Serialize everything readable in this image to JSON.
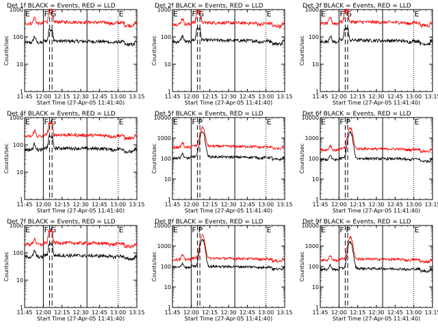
{
  "chart_data": [
    {
      "type": "line",
      "title": "Det 1f BLACK = Events, RED = LLD",
      "xlabel": "Start Time (27-Apr-05 11:41:40)",
      "ylabel": "Counts/sec",
      "yscale": "log",
      "ylim": [
        1,
        1000
      ],
      "y_ticks": [
        "1",
        "10",
        "100",
        "1000"
      ],
      "xlim": [
        "11:45",
        "13:15"
      ],
      "x_ticks": [
        "11:45",
        "12:00",
        "12:15",
        "12:30",
        "12:45",
        "13:00",
        "13:15"
      ],
      "markers": [
        {
          "label": "E",
          "time": "11:45",
          "style": "dotted"
        },
        {
          "label": "F",
          "time": "12:00",
          "style": "solid"
        },
        {
          "label": "G",
          "time": "12:05",
          "style": "dashed"
        },
        {
          "label": "",
          "time": "12:07",
          "style": "dashed"
        },
        {
          "label": "",
          "time": "12:35",
          "style": "solid"
        },
        {
          "label": "E",
          "time": "13:00",
          "style": "dotted"
        }
      ],
      "series": [
        {
          "name": "Events",
          "color": "#000000",
          "profile": "front",
          "base": 70,
          "peak": 0
        },
        {
          "name": "LLD",
          "color": "#ff0000",
          "profile": "front",
          "base": 350,
          "peak": 0
        }
      ]
    },
    {
      "type": "line",
      "title": "Det 2f BLACK = Events, RED = LLD",
      "xlabel": "Start Time (27-Apr-05 11:41:40)",
      "ylabel": "Counts/sec",
      "yscale": "log",
      "ylim": [
        1,
        1000
      ],
      "y_ticks": [
        "1",
        "10",
        "100",
        "1000"
      ],
      "xlim": [
        "11:45",
        "13:15"
      ],
      "x_ticks": [
        "11:45",
        "12:00",
        "12:15",
        "12:30",
        "12:45",
        "13:00",
        "13:15"
      ],
      "markers": [
        {
          "label": "E",
          "time": "11:45",
          "style": "dotted"
        },
        {
          "label": "F",
          "time": "12:00",
          "style": "solid"
        },
        {
          "label": "G",
          "time": "12:05",
          "style": "dashed"
        },
        {
          "label": "",
          "time": "12:07",
          "style": "dashed"
        },
        {
          "label": "",
          "time": "12:35",
          "style": "solid"
        },
        {
          "label": "E",
          "time": "13:00",
          "style": "dotted"
        }
      ],
      "series": [
        {
          "name": "Events",
          "color": "#000000",
          "profile": "front",
          "base": 75,
          "peak": 0
        },
        {
          "name": "LLD",
          "color": "#ff0000",
          "profile": "front",
          "base": 330,
          "peak": 0
        }
      ]
    },
    {
      "type": "line",
      "title": "Det 3f BLACK = Events, RED = LLD",
      "xlabel": "Start Time (27-Apr-05 11:41:40)",
      "ylabel": "Counts/sec",
      "yscale": "log",
      "ylim": [
        1,
        1000
      ],
      "y_ticks": [
        "1",
        "10",
        "100",
        "1000"
      ],
      "xlim": [
        "11:45",
        "13:15"
      ],
      "x_ticks": [
        "11:45",
        "12:00",
        "12:15",
        "12:30",
        "12:45",
        "13:00",
        "13:15"
      ],
      "markers": [
        {
          "label": "E",
          "time": "11:45",
          "style": "dotted"
        },
        {
          "label": "F",
          "time": "12:00",
          "style": "solid"
        },
        {
          "label": "G",
          "time": "12:05",
          "style": "dashed"
        },
        {
          "label": "",
          "time": "12:07",
          "style": "dashed"
        },
        {
          "label": "",
          "time": "12:35",
          "style": "solid"
        },
        {
          "label": "E",
          "time": "13:00",
          "style": "dotted"
        }
      ],
      "series": [
        {
          "name": "Events",
          "color": "#000000",
          "profile": "front",
          "base": 75,
          "peak": 0
        },
        {
          "name": "LLD",
          "color": "#ff0000",
          "profile": "front",
          "base": 350,
          "peak": 0
        }
      ]
    },
    {
      "type": "line",
      "title": "Det 4f BLACK = Events, RED = LLD",
      "xlabel": "Start Time (27-Apr-05 11:41:40)",
      "ylabel": "Counts/sec",
      "yscale": "log",
      "ylim": [
        1,
        1000
      ],
      "y_ticks": [
        "1",
        "10",
        "100",
        "1000"
      ],
      "xlim": [
        "11:45",
        "13:15"
      ],
      "x_ticks": [
        "11:45",
        "12:00",
        "12:15",
        "12:30",
        "12:45",
        "13:00",
        "13:15"
      ],
      "markers": [
        {
          "label": "E",
          "time": "11:45",
          "style": "dotted"
        },
        {
          "label": "F",
          "time": "12:00",
          "style": "solid"
        },
        {
          "label": "G",
          "time": "12:05",
          "style": "dashed"
        },
        {
          "label": "",
          "time": "12:07",
          "style": "dashed"
        },
        {
          "label": "",
          "time": "12:35",
          "style": "solid"
        },
        {
          "label": "E",
          "time": "13:00",
          "style": "dotted"
        }
      ],
      "series": [
        {
          "name": "Events",
          "color": "#000000",
          "profile": "front",
          "base": 75,
          "peak": 0
        },
        {
          "name": "LLD",
          "color": "#ff0000",
          "profile": "front",
          "base": 230,
          "peak": 0
        }
      ]
    },
    {
      "type": "line",
      "title": "Det 5f BLACK = Events, RED = LLD",
      "xlabel": "Start Time (27-Apr-05 11:41:40)",
      "ylabel": "Counts/sec",
      "yscale": "log",
      "ylim": [
        1,
        10000
      ],
      "y_ticks": [
        "1",
        "10",
        "100",
        "1000",
        "10000"
      ],
      "xlim": [
        "11:45",
        "13:15"
      ],
      "x_ticks": [
        "11:45",
        "12:00",
        "12:15",
        "12:30",
        "12:45",
        "13:00",
        "13:15"
      ],
      "markers": [
        {
          "label": "E",
          "time": "11:45",
          "style": "dotted"
        },
        {
          "label": "F",
          "time": "12:00",
          "style": "solid"
        },
        {
          "label": "P",
          "time": "12:05",
          "style": "dashed"
        },
        {
          "label": "",
          "time": "12:07",
          "style": "dashed"
        },
        {
          "label": "",
          "time": "12:35",
          "style": "solid"
        },
        {
          "label": "E",
          "time": "13:00",
          "style": "dotted"
        }
      ],
      "series": [
        {
          "name": "Events",
          "color": "#000000",
          "profile": "rear",
          "base": 120,
          "peak": 2000
        },
        {
          "name": "LLD",
          "color": "#ff0000",
          "profile": "rear",
          "base": 400,
          "peak": 3000
        }
      ]
    },
    {
      "type": "line",
      "title": "Det 6f BLACK = Events, RED = LLD",
      "xlabel": "Start Time (27-Apr-05 11:41:40)",
      "ylabel": "Counts/sec",
      "yscale": "log",
      "ylim": [
        1,
        10000
      ],
      "y_ticks": [
        "1",
        "10",
        "100",
        "1000",
        "10000"
      ],
      "xlim": [
        "11:45",
        "13:15"
      ],
      "x_ticks": [
        "11:45",
        "12:00",
        "12:15",
        "12:30",
        "12:45",
        "13:00",
        "13:15"
      ],
      "markers": [
        {
          "label": "E",
          "time": "11:45",
          "style": "dotted"
        },
        {
          "label": "F",
          "time": "12:00",
          "style": "solid"
        },
        {
          "label": "P",
          "time": "12:05",
          "style": "dashed"
        },
        {
          "label": "",
          "time": "12:07",
          "style": "dashed"
        },
        {
          "label": "",
          "time": "12:35",
          "style": "solid"
        },
        {
          "label": "E",
          "time": "13:00",
          "style": "dotted"
        }
      ],
      "series": [
        {
          "name": "Events",
          "color": "#000000",
          "profile": "rear",
          "base": 100,
          "peak": 1800
        },
        {
          "name": "LLD",
          "color": "#ff0000",
          "profile": "rear",
          "base": 300,
          "peak": 2800
        }
      ]
    },
    {
      "type": "line",
      "title": "Det 7f BLACK = Events, RED = LLD",
      "xlabel": "Start Time (27-Apr-05 11:41:40)",
      "ylabel": "Counts/sec",
      "yscale": "log",
      "ylim": [
        1,
        1000
      ],
      "y_ticks": [
        "1",
        "10",
        "100",
        "1000"
      ],
      "xlim": [
        "11:45",
        "13:15"
      ],
      "x_ticks": [
        "11:45",
        "12:00",
        "12:15",
        "12:30",
        "12:45",
        "13:00",
        "13:15"
      ],
      "markers": [
        {
          "label": "E",
          "time": "11:45",
          "style": "dotted"
        },
        {
          "label": "F",
          "time": "12:00",
          "style": "solid"
        },
        {
          "label": "G",
          "time": "12:05",
          "style": "dashed"
        },
        {
          "label": "",
          "time": "12:07",
          "style": "dashed"
        },
        {
          "label": "",
          "time": "12:35",
          "style": "solid"
        },
        {
          "label": "E",
          "time": "13:00",
          "style": "dotted"
        }
      ],
      "series": [
        {
          "name": "Events",
          "color": "#000000",
          "profile": "front",
          "base": 80,
          "peak": 0
        },
        {
          "name": "LLD",
          "color": "#ff0000",
          "profile": "front",
          "base": 230,
          "peak": 0
        }
      ]
    },
    {
      "type": "line",
      "title": "Det 8f BLACK = Events, RED = LLD",
      "xlabel": "Start Time (27-Apr-05 11:41:40)",
      "ylabel": "Counts/sec",
      "yscale": "log",
      "ylim": [
        1,
        10000
      ],
      "y_ticks": [
        "1",
        "10",
        "100",
        "1000",
        "10000"
      ],
      "xlim": [
        "11:45",
        "13:15"
      ],
      "x_ticks": [
        "11:45",
        "12:00",
        "12:15",
        "12:30",
        "12:45",
        "13:00",
        "13:15"
      ],
      "markers": [
        {
          "label": "E",
          "time": "11:45",
          "style": "dotted"
        },
        {
          "label": "F",
          "time": "12:00",
          "style": "solid"
        },
        {
          "label": "P",
          "time": "12:05",
          "style": "dashed"
        },
        {
          "label": "",
          "time": "12:07",
          "style": "dashed"
        },
        {
          "label": "",
          "time": "12:35",
          "style": "solid"
        },
        {
          "label": "E",
          "time": "13:00",
          "style": "dotted"
        }
      ],
      "series": [
        {
          "name": "Events",
          "color": "#000000",
          "profile": "rear",
          "base": 100,
          "peak": 2000
        },
        {
          "name": "LLD",
          "color": "#ff0000",
          "profile": "rear",
          "base": 250,
          "peak": 3000
        }
      ]
    },
    {
      "type": "line",
      "title": "Det 9f BLACK = Events, RED = LLD",
      "xlabel": "Start Time (27-Apr-05 11:41:40)",
      "ylabel": "Counts/sec",
      "yscale": "log",
      "ylim": [
        1,
        10000
      ],
      "y_ticks": [
        "1",
        "10",
        "100",
        "1000",
        "10000"
      ],
      "xlim": [
        "11:45",
        "13:15"
      ],
      "x_ticks": [
        "11:45",
        "12:00",
        "12:15",
        "12:30",
        "12:45",
        "13:00",
        "13:15"
      ],
      "markers": [
        {
          "label": "E",
          "time": "11:45",
          "style": "dotted"
        },
        {
          "label": "F",
          "time": "12:00",
          "style": "solid"
        },
        {
          "label": "P",
          "time": "12:05",
          "style": "dashed"
        },
        {
          "label": "",
          "time": "12:07",
          "style": "dashed"
        },
        {
          "label": "",
          "time": "12:35",
          "style": "solid"
        },
        {
          "label": "E",
          "time": "13:00",
          "style": "dotted"
        }
      ],
      "series": [
        {
          "name": "Events",
          "color": "#000000",
          "profile": "rear",
          "base": 80,
          "peak": 1500
        },
        {
          "name": "LLD",
          "color": "#ff0000",
          "profile": "rear",
          "base": 230,
          "peak": 2500
        }
      ]
    }
  ]
}
